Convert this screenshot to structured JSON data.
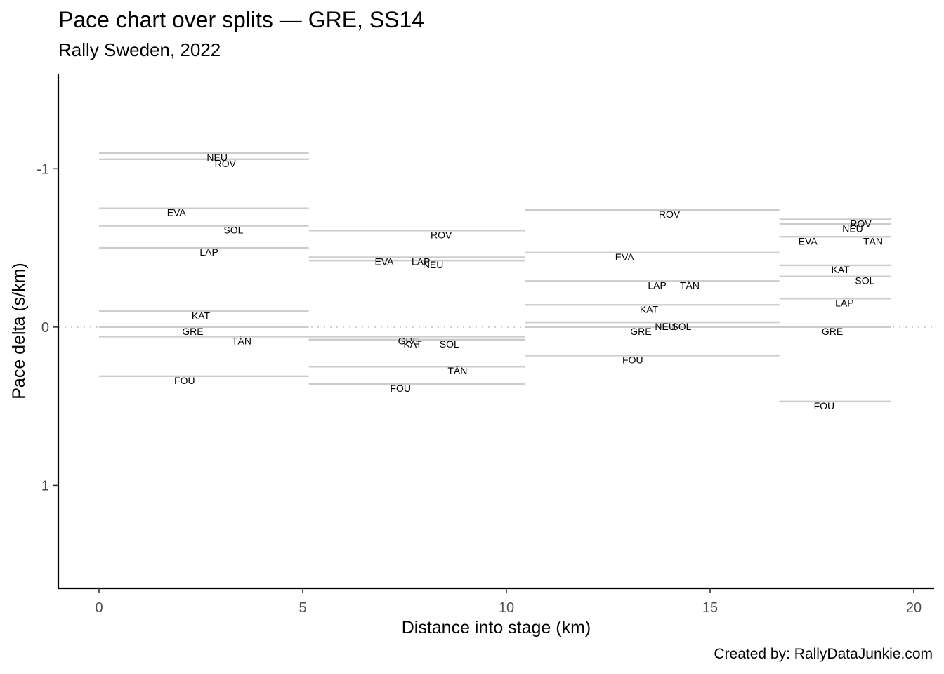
{
  "title": "Pace chart over splits — GRE, SS14",
  "subtitle": "Rally Sweden, 2022",
  "caption": "Created by: RallyDataJunkie.com",
  "chart_data": {
    "type": "segment",
    "title": "Pace chart over splits — GRE, SS14",
    "subtitle": "Rally Sweden, 2022",
    "xlabel": "Distance into stage (km)",
    "ylabel": "Pace delta (s/km)",
    "xlim": [
      -1,
      20.5
    ],
    "ylim": [
      -1.6,
      1.65
    ],
    "y_reversed": true,
    "xticks": [
      0,
      5,
      10,
      15,
      20
    ],
    "yticks": [
      -1,
      0,
      1
    ],
    "ytick_labels": [
      "-1",
      "0",
      "1"
    ],
    "reference_line": {
      "y": 0,
      "style": "dotted",
      "color": "#cccccc"
    },
    "splits": [
      {
        "start": 0,
        "end": 5.15,
        "pace": [
          {
            "code": "NEU",
            "value": -1.1,
            "label_x": 2.9
          },
          {
            "code": "ROV",
            "value": -1.06,
            "label_x": 3.1
          },
          {
            "code": "EVA",
            "value": -0.75,
            "label_x": 1.9
          },
          {
            "code": "SOL",
            "value": -0.64,
            "label_x": 3.3
          },
          {
            "code": "LAP",
            "value": -0.5,
            "label_x": 2.7
          },
          {
            "code": "KAT",
            "value": -0.1,
            "label_x": 2.5
          },
          {
            "code": "GRE",
            "value": 0,
            "label_x": 2.3
          },
          {
            "code": "TÄN",
            "value": 0.06,
            "label_x": 3.5
          },
          {
            "code": "FOU",
            "value": 0.31,
            "label_x": 2.1
          }
        ]
      },
      {
        "start": 5.15,
        "end": 10.45,
        "pace": [
          {
            "code": "ROV",
            "value": -0.61,
            "label_x": 8.4
          },
          {
            "code": "EVA",
            "value": -0.44,
            "label_x": 7.0
          },
          {
            "code": "LAP",
            "value": -0.44,
            "label_x": 7.9
          },
          {
            "code": "NEU",
            "value": -0.42,
            "label_x": 8.2
          },
          {
            "code": "GRE",
            "value": 0.06,
            "label_x": 7.6
          },
          {
            "code": "SOL",
            "value": 0.08,
            "label_x": 8.6
          },
          {
            "code": "KAT",
            "value": 0.08,
            "label_x": 7.7
          },
          {
            "code": "TÄN",
            "value": 0.25,
            "label_x": 8.8
          },
          {
            "code": "FOU",
            "value": 0.36,
            "label_x": 7.4
          }
        ]
      },
      {
        "start": 10.45,
        "end": 16.7,
        "pace": [
          {
            "code": "ROV",
            "value": -0.74,
            "label_x": 14.0
          },
          {
            "code": "EVA",
            "value": -0.47,
            "label_x": 12.9
          },
          {
            "code": "LAP",
            "value": -0.29,
            "label_x": 13.7
          },
          {
            "code": "TÄN",
            "value": -0.29,
            "label_x": 14.5
          },
          {
            "code": "KAT",
            "value": -0.14,
            "label_x": 13.5
          },
          {
            "code": "NEU",
            "value": -0.03,
            "label_x": 13.9
          },
          {
            "code": "SOL",
            "value": -0.03,
            "label_x": 14.3
          },
          {
            "code": "GRE",
            "value": 0,
            "label_x": 13.3
          },
          {
            "code": "FOU",
            "value": 0.18,
            "label_x": 13.1
          }
        ]
      },
      {
        "start": 16.7,
        "end": 19.45,
        "pace": [
          {
            "code": "ROV",
            "value": -0.68,
            "label_x": 18.7
          },
          {
            "code": "NEU",
            "value": -0.65,
            "label_x": 18.5
          },
          {
            "code": "EVA",
            "value": -0.57,
            "label_x": 17.4
          },
          {
            "code": "TÄN",
            "value": -0.57,
            "label_x": 19.0
          },
          {
            "code": "KAT",
            "value": -0.39,
            "label_x": 18.2
          },
          {
            "code": "SOL",
            "value": -0.32,
            "label_x": 18.8
          },
          {
            "code": "LAP",
            "value": -0.18,
            "label_x": 18.3
          },
          {
            "code": "GRE",
            "value": 0,
            "label_x": 18.0
          },
          {
            "code": "FOU",
            "value": 0.47,
            "label_x": 17.8
          }
        ]
      }
    ]
  }
}
